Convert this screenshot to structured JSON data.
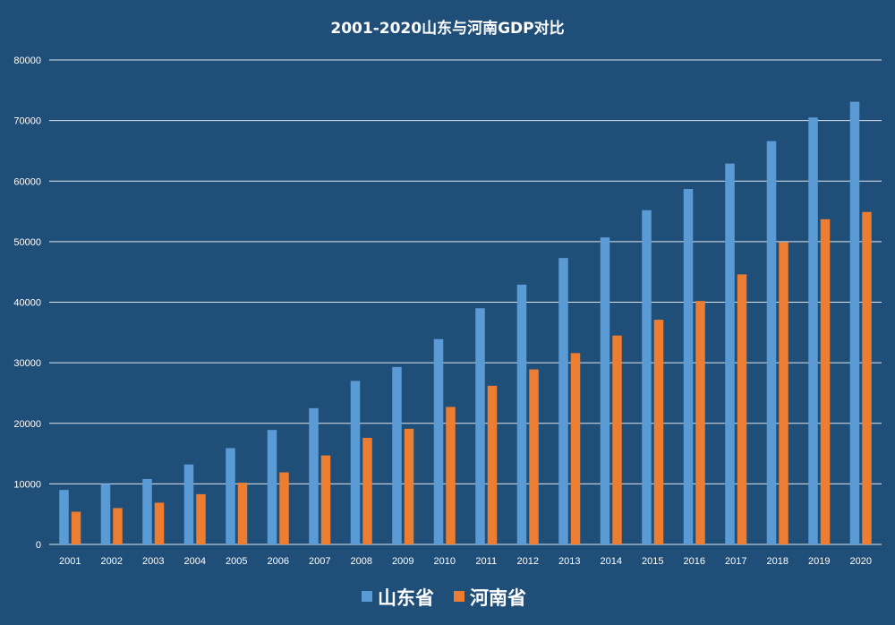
{
  "chart_data": {
    "type": "bar",
    "title": "2001-2020山东与河南GDP对比",
    "xlabel": "",
    "ylabel": "",
    "ylim": [
      0,
      80000
    ],
    "yticks": [
      0,
      10000,
      20000,
      30000,
      40000,
      50000,
      60000,
      70000,
      80000
    ],
    "grid": true,
    "legend_position": "bottom",
    "categories": [
      "2001",
      "2002",
      "2003",
      "2004",
      "2005",
      "2006",
      "2007",
      "2008",
      "2009",
      "2010",
      "2011",
      "2012",
      "2013",
      "2014",
      "2015",
      "2016",
      "2017",
      "2018",
      "2019",
      "2020"
    ],
    "series": [
      {
        "name": "山东省",
        "color": "#5b9bd5",
        "values": [
          9000,
          10000,
          10800,
          13200,
          15900,
          18900,
          22500,
          27000,
          29300,
          33900,
          39000,
          42900,
          47300,
          50700,
          55200,
          58700,
          62900,
          66600,
          70500,
          73100
        ]
      },
      {
        "name": "河南省",
        "color": "#ed7d31",
        "values": [
          5400,
          6000,
          6900,
          8300,
          10200,
          11900,
          14700,
          17600,
          19100,
          22700,
          26200,
          28900,
          31600,
          34500,
          37100,
          40200,
          44600,
          49900,
          53700,
          54900
        ]
      }
    ]
  }
}
